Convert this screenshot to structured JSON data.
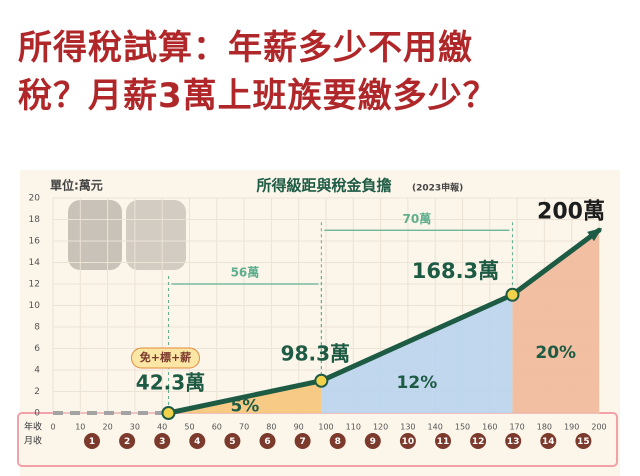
{
  "headline": [
    "所得稅試算：年薪多少不用繳",
    "稅？月薪3萬上班族要繳多少？"
  ],
  "chart_data": {
    "type": "line",
    "title": "所得級距與稅金負擔",
    "subtitle": "(2023申報)",
    "unit_label": "單位:萬元",
    "x": [
      0,
      42.3,
      98.3,
      168.3,
      200
    ],
    "series": [
      {
        "color": "#a3a3a3",
        "dash": true,
        "values": [
          0,
          0,
          null,
          null,
          null
        ]
      },
      {
        "color": "#1e5b45",
        "values": [
          null,
          0,
          3,
          11,
          17
        ]
      }
    ],
    "point_color": "#f2d24b",
    "xlim": [
      0,
      200
    ],
    "xticks": [
      0,
      10,
      20,
      30,
      40,
      50,
      60,
      70,
      80,
      90,
      100,
      110,
      120,
      130,
      140,
      150,
      160,
      170,
      180,
      190,
      200
    ],
    "x_axis_label": "年收",
    "ylim": [
      0,
      20
    ],
    "yticks": [
      0,
      2,
      4,
      6,
      8,
      10,
      12,
      14,
      16,
      18,
      20
    ],
    "grid": true,
    "monthly": {
      "label": "月收",
      "values": [
        1,
        2,
        3,
        4,
        5,
        6,
        7,
        8,
        9,
        10,
        11,
        12,
        13,
        14,
        15
      ],
      "color": "#7b3a2c"
    },
    "point_labels": [
      {
        "text": "42.3萬",
        "x": 42.3
      },
      {
        "text": "98.3萬",
        "x": 98.3
      },
      {
        "text": "168.3萬",
        "x": 168.3
      },
      {
        "text": "200萬",
        "x": 200
      }
    ],
    "badge": "免+標+薪",
    "spans": [
      {
        "text": "56萬",
        "from": 42.3,
        "to": 98.3,
        "y": 12
      },
      {
        "text": "70萬",
        "from": 98.3,
        "to": 168.3,
        "y": 17
      }
    ],
    "bands": [
      {
        "text": "5%",
        "from": 42.3,
        "to": 98.3,
        "color": "#f6c77a"
      },
      {
        "text": "12%",
        "from": 98.3,
        "to": 168.3,
        "color": "#b9d4ee"
      },
      {
        "text": "20%",
        "from": 168.3,
        "to": 200,
        "color": "#f1b99a"
      }
    ]
  }
}
